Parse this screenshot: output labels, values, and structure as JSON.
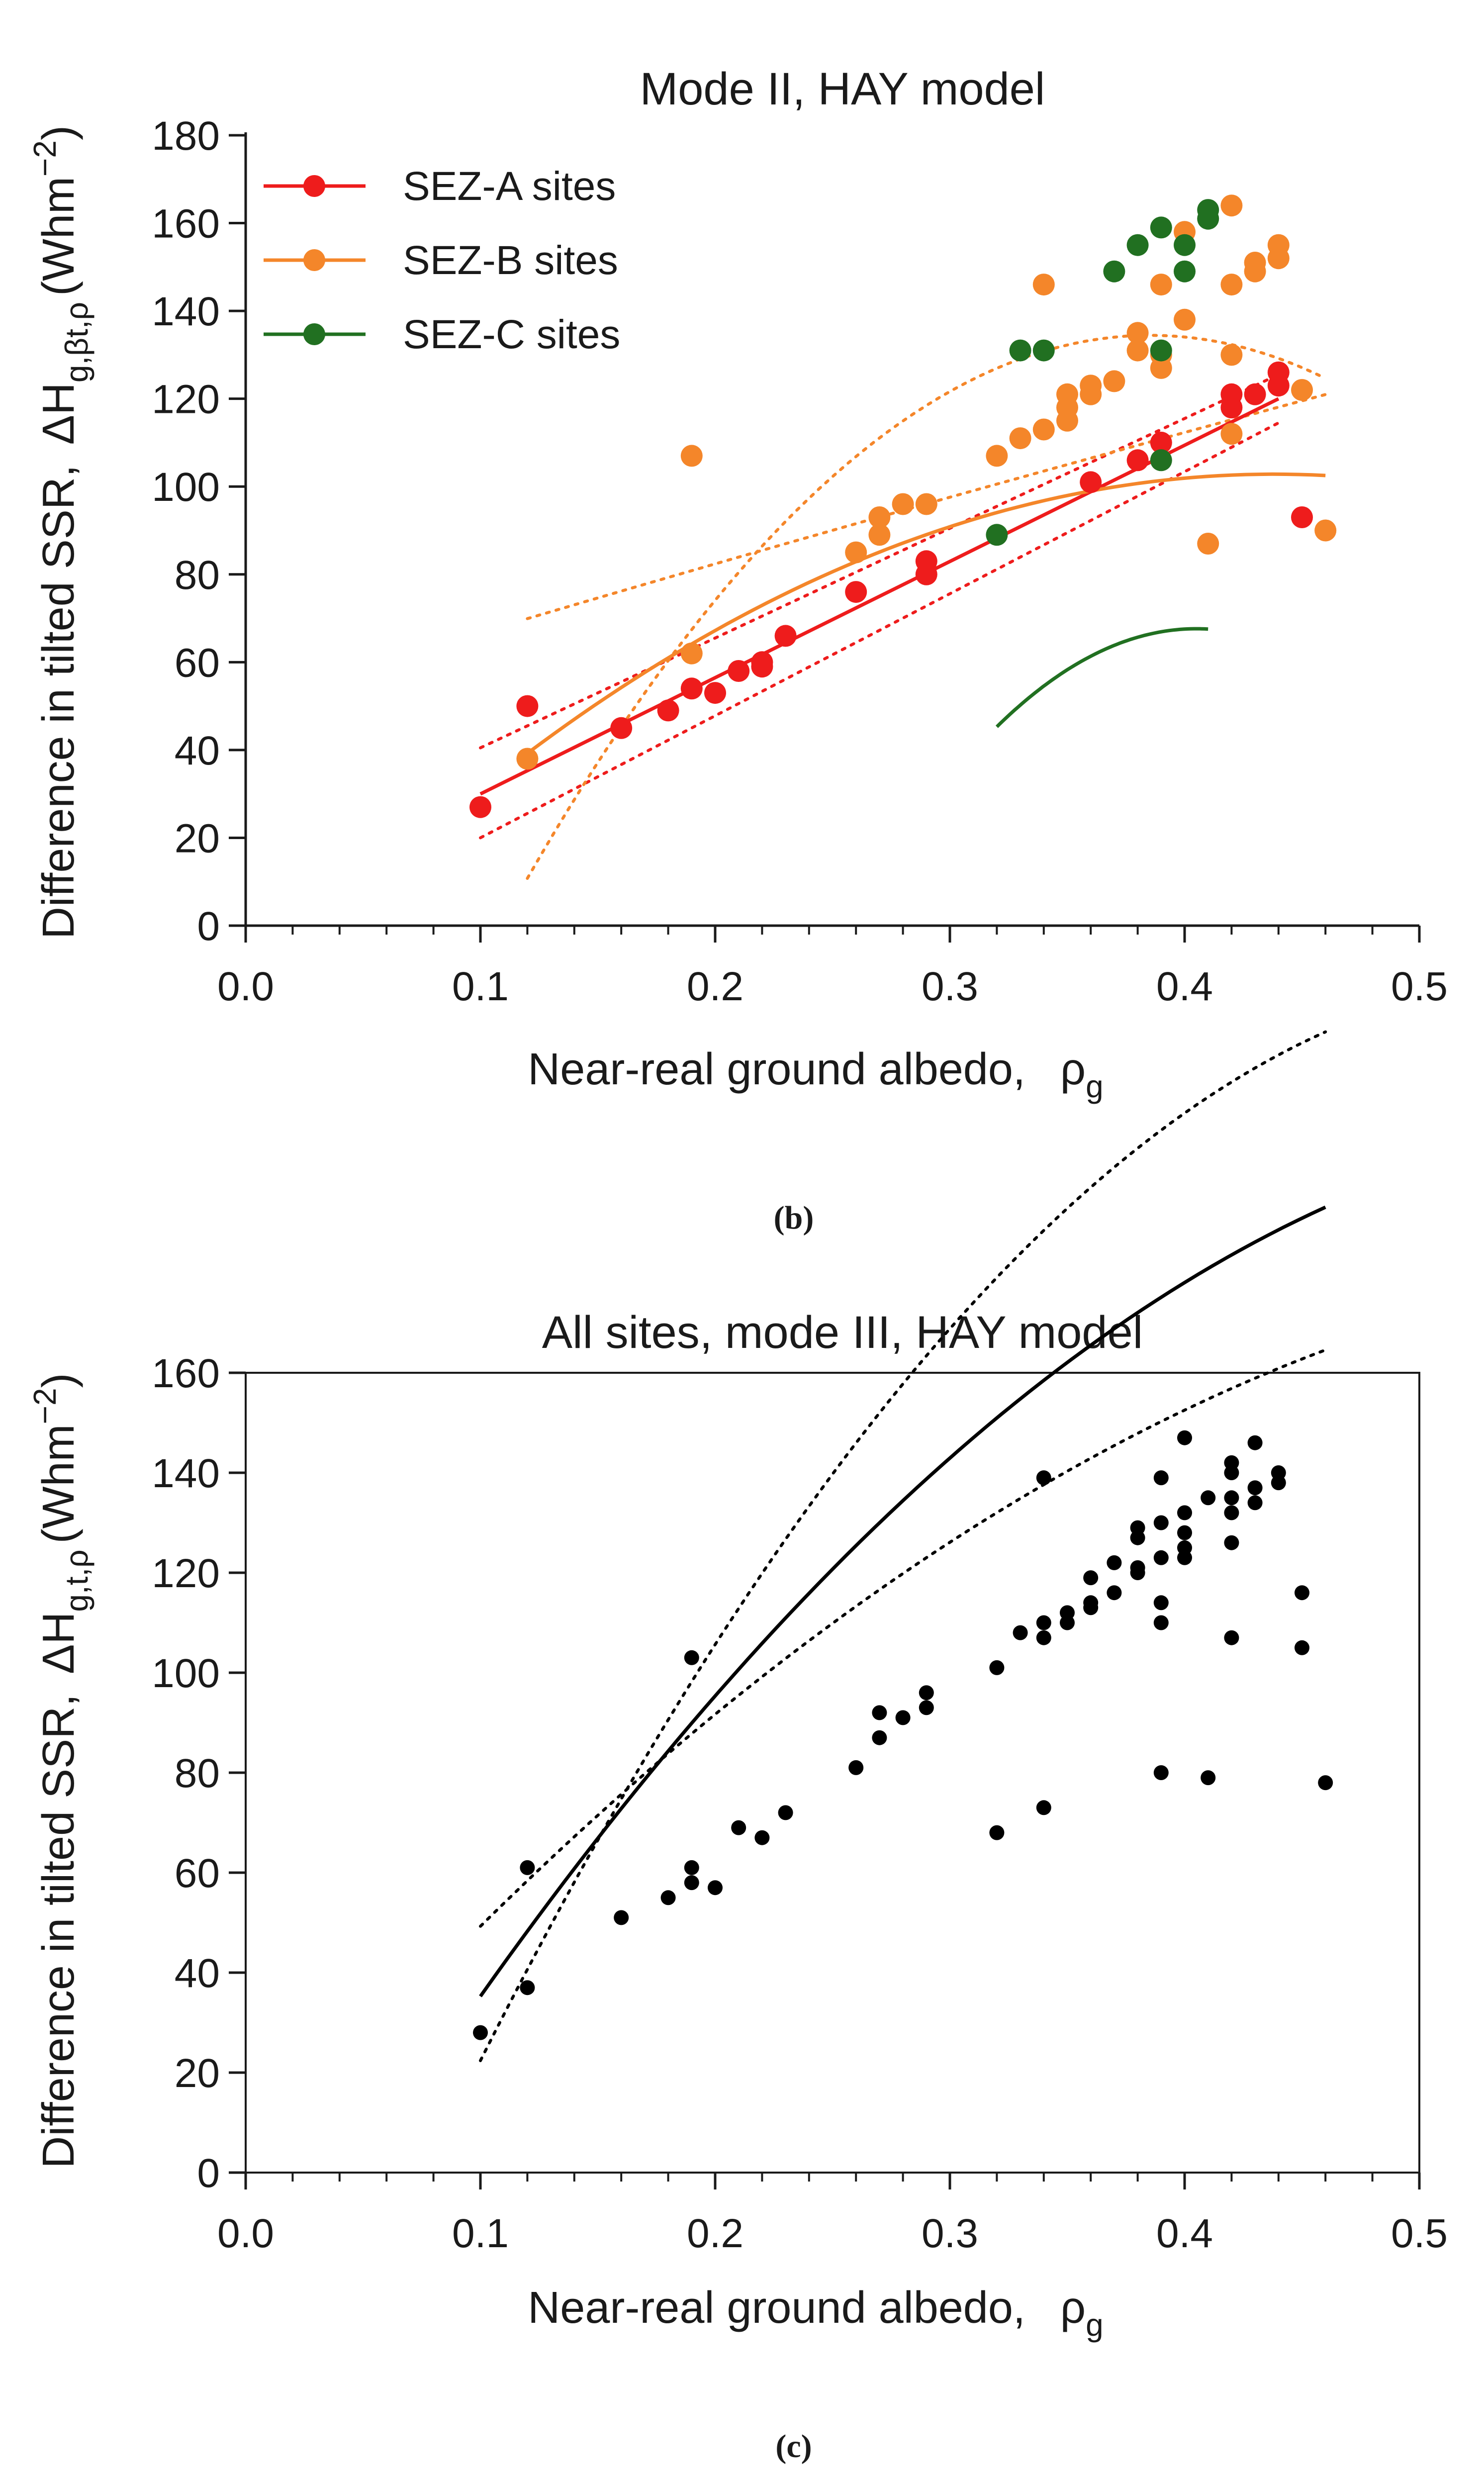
{
  "chart_data": [
    {
      "type": "scatter",
      "panel": "b",
      "caption": "(b)",
      "title": "Mode II, HAY model",
      "xlabel": "Near-real ground albedo,",
      "xlabel_symbol": "ρ",
      "xlabel_sub": "g",
      "ylabel_prefix": "Difference in tilted SSR,",
      "ylabel_symbol": "ΔH",
      "ylabel_sub": "g,βt,ρ",
      "ylabel_unit": "(Whm",
      "ylabel_unit_sup": "−2",
      "ylabel_unit_close": ")",
      "xlim": [
        0.0,
        0.5
      ],
      "ylim": [
        0,
        180
      ],
      "xticks": [
        "0.0",
        "0.1",
        "0.2",
        "0.3",
        "0.4",
        "0.5"
      ],
      "yticks": [
        "0",
        "20",
        "40",
        "60",
        "80",
        "100",
        "120",
        "140",
        "160",
        "180"
      ],
      "legend_position": "top-left",
      "series": [
        {
          "name": "SEZ-A sites",
          "color": "#ee1c1c",
          "points": [
            [
              0.1,
              27
            ],
            [
              0.12,
              50
            ],
            [
              0.16,
              45
            ],
            [
              0.18,
              49
            ],
            [
              0.19,
              54
            ],
            [
              0.2,
              53
            ],
            [
              0.21,
              58
            ],
            [
              0.22,
              60
            ],
            [
              0.22,
              59
            ],
            [
              0.23,
              66
            ],
            [
              0.26,
              76
            ],
            [
              0.29,
              80
            ],
            [
              0.29,
              83
            ],
            [
              0.36,
              101
            ],
            [
              0.38,
              106
            ],
            [
              0.39,
              110
            ],
            [
              0.42,
              118
            ],
            [
              0.42,
              121
            ],
            [
              0.43,
              121
            ],
            [
              0.44,
              123
            ],
            [
              0.44,
              126
            ],
            [
              0.45,
              93
            ]
          ],
          "fit": {
            "kind": "linear",
            "x": [
              0.1,
              0.44
            ],
            "y": [
              30,
              120
            ]
          },
          "ci_upper": {
            "x": [
              0.1,
              0.44
            ],
            "y": [
              40.5,
              125.5
            ]
          },
          "ci_lower": {
            "x": [
              0.1,
              0.44
            ],
            "y": [
              20,
              114.5
            ]
          }
        },
        {
          "name": "SEZ-B sites",
          "color": "#f4862a",
          "points": [
            [
              0.12,
              38
            ],
            [
              0.19,
              107
            ],
            [
              0.19,
              62
            ],
            [
              0.26,
              85
            ],
            [
              0.27,
              89
            ],
            [
              0.27,
              93
            ],
            [
              0.28,
              96
            ],
            [
              0.29,
              96
            ],
            [
              0.32,
              107
            ],
            [
              0.33,
              111
            ],
            [
              0.34,
              113
            ],
            [
              0.34,
              146
            ],
            [
              0.35,
              115
            ],
            [
              0.35,
              118
            ],
            [
              0.35,
              121
            ],
            [
              0.36,
              121
            ],
            [
              0.36,
              123
            ],
            [
              0.37,
              124
            ],
            [
              0.38,
              131
            ],
            [
              0.38,
              135
            ],
            [
              0.39,
              127
            ],
            [
              0.39,
              130
            ],
            [
              0.39,
              146
            ],
            [
              0.4,
              138
            ],
            [
              0.4,
              158
            ],
            [
              0.41,
              87
            ],
            [
              0.42,
              112
            ],
            [
              0.42,
              130
            ],
            [
              0.42,
              146
            ],
            [
              0.42,
              164
            ],
            [
              0.43,
              149
            ],
            [
              0.43,
              151
            ],
            [
              0.44,
              152
            ],
            [
              0.44,
              155
            ],
            [
              0.45,
              122
            ],
            [
              0.46,
              90
            ]
          ],
          "fit": {
            "kind": "quadratic",
            "coef": [
              -17.8,
              550.8,
              -628.8
            ],
            "range": [
              0.12,
              0.46
            ]
          },
          "ci_upper": {
            "kind": "quadratic",
            "coef": [
              50.7,
              162.8,
              -21.9
            ],
            "range": [
              0.12,
              0.46
            ]
          },
          "ci_lower": {
            "kind": "quadratic",
            "coef": [
              -126.4,
              1353.8,
              -1756.6
            ],
            "range": [
              0.12,
              0.46
            ]
          }
        },
        {
          "name": "SEZ-C sites",
          "color": "#217021",
          "points": [
            [
              0.32,
              89
            ],
            [
              0.33,
              131
            ],
            [
              0.34,
              131
            ],
            [
              0.37,
              149
            ],
            [
              0.38,
              155
            ],
            [
              0.39,
              159
            ],
            [
              0.39,
              131
            ],
            [
              0.39,
              106
            ],
            [
              0.4,
              149
            ],
            [
              0.4,
              155
            ],
            [
              0.41,
              161
            ],
            [
              0.41,
              163
            ]
          ],
          "fit": {
            "kind": "quadratic",
            "coef": [
              -438.7,
              2500,
              -3086
            ],
            "range": [
              0.32,
              0.41
            ]
          }
        }
      ]
    },
    {
      "type": "scatter",
      "panel": "c",
      "caption": "(c)",
      "title": "All sites, mode III, HAY model",
      "xlabel": "Near-real ground albedo,",
      "xlabel_symbol": "ρ",
      "xlabel_sub": "g",
      "ylabel_prefix": "Difference in tilted SSR,",
      "ylabel_symbol": "ΔH",
      "ylabel_sub": "g,t,ρ",
      "ylabel_unit": "(Whm",
      "ylabel_unit_sup": "−2",
      "ylabel_unit_close": ")",
      "xlim": [
        0.0,
        0.5
      ],
      "ylim": [
        0,
        160
      ],
      "xticks": [
        "0.0",
        "0.1",
        "0.2",
        "0.3",
        "0.4",
        "0.5"
      ],
      "yticks": [
        "0",
        "20",
        "40",
        "60",
        "80",
        "100",
        "120",
        "140",
        "160"
      ],
      "series": [
        {
          "name": "All sites",
          "color": "#000000",
          "points": [
            [
              0.1,
              28
            ],
            [
              0.12,
              37
            ],
            [
              0.12,
              61
            ],
            [
              0.16,
              51
            ],
            [
              0.18,
              55
            ],
            [
              0.19,
              58
            ],
            [
              0.19,
              61
            ],
            [
              0.19,
              103
            ],
            [
              0.2,
              57
            ],
            [
              0.21,
              69
            ],
            [
              0.22,
              67
            ],
            [
              0.23,
              72
            ],
            [
              0.26,
              81
            ],
            [
              0.27,
              87
            ],
            [
              0.27,
              92
            ],
            [
              0.28,
              91
            ],
            [
              0.29,
              93
            ],
            [
              0.29,
              96
            ],
            [
              0.32,
              68
            ],
            [
              0.32,
              101
            ],
            [
              0.33,
              108
            ],
            [
              0.34,
              107
            ],
            [
              0.34,
              110
            ],
            [
              0.34,
              73
            ],
            [
              0.34,
              139
            ],
            [
              0.35,
              110
            ],
            [
              0.35,
              112
            ],
            [
              0.36,
              113
            ],
            [
              0.36,
              114
            ],
            [
              0.36,
              119
            ],
            [
              0.37,
              116
            ],
            [
              0.37,
              122
            ],
            [
              0.38,
              120
            ],
            [
              0.38,
              121
            ],
            [
              0.38,
              127
            ],
            [
              0.38,
              129
            ],
            [
              0.39,
              110
            ],
            [
              0.39,
              114
            ],
            [
              0.39,
              80
            ],
            [
              0.39,
              123
            ],
            [
              0.39,
              130
            ],
            [
              0.39,
              139
            ],
            [
              0.4,
              123
            ],
            [
              0.4,
              125
            ],
            [
              0.4,
              128
            ],
            [
              0.4,
              132
            ],
            [
              0.4,
              147
            ],
            [
              0.41,
              79
            ],
            [
              0.41,
              135
            ],
            [
              0.42,
              107
            ],
            [
              0.42,
              126
            ],
            [
              0.42,
              132
            ],
            [
              0.42,
              135
            ],
            [
              0.42,
              140
            ],
            [
              0.42,
              142
            ],
            [
              0.43,
              134
            ],
            [
              0.43,
              137
            ],
            [
              0.43,
              146
            ],
            [
              0.44,
              138
            ],
            [
              0.44,
              140
            ],
            [
              0.45,
              105
            ],
            [
              0.45,
              116
            ],
            [
              0.46,
              78
            ]
          ],
          "fit": {
            "kind": "quadratic",
            "coef": [
              -37.3,
              788.1,
              -624.3
            ],
            "range": [
              0.1,
              0.46
            ]
          },
          "ci_upper": {
            "kind": "quadratic",
            "coef": [
              -1.1,
              543.6,
              -398.8
            ],
            "range": [
              0.1,
              0.46
            ]
          },
          "ci_lower": {
            "kind": "quadratic",
            "coef": [
              -80.9,
              1133.2,
              -1002.7
            ],
            "range": [
              0.1,
              0.46
            ]
          }
        }
      ]
    }
  ]
}
